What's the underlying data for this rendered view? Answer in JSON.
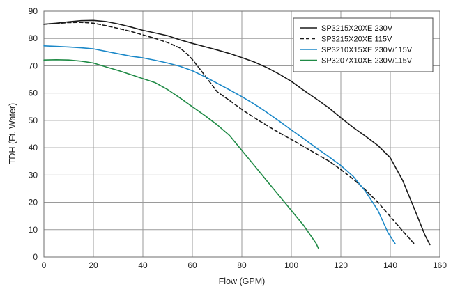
{
  "chart_data": {
    "type": "line",
    "xlabel": "Flow (GPM)",
    "ylabel": "TDH (Ft. Water)",
    "xlim": [
      0,
      160
    ],
    "ylim": [
      0,
      90
    ],
    "xticks": [
      0,
      20,
      40,
      60,
      80,
      100,
      120,
      140,
      160
    ],
    "yticks": [
      0,
      10,
      20,
      30,
      40,
      50,
      60,
      70,
      80,
      90
    ],
    "grid": true,
    "legend": "top-right",
    "series": [
      {
        "name": "SP3215X20XE 230V",
        "color": "#1a1a1a",
        "dash": "solid",
        "points": [
          [
            0,
            85.2
          ],
          [
            5,
            85.6
          ],
          [
            10,
            86.1
          ],
          [
            15,
            86.5
          ],
          [
            20,
            86.6
          ],
          [
            25,
            86.2
          ],
          [
            30,
            85.3
          ],
          [
            35,
            84.2
          ],
          [
            40,
            83.0
          ],
          [
            45,
            82.0
          ],
          [
            50,
            81.0
          ],
          [
            55,
            79.5
          ],
          [
            60,
            78.2
          ],
          [
            65,
            77.0
          ],
          [
            70,
            75.8
          ],
          [
            75,
            74.5
          ],
          [
            80,
            73.0
          ],
          [
            85,
            71.4
          ],
          [
            90,
            69.4
          ],
          [
            95,
            67.0
          ],
          [
            100,
            64.3
          ],
          [
            105,
            61.0
          ],
          [
            110,
            57.9
          ],
          [
            115,
            54.7
          ],
          [
            120,
            51.0
          ],
          [
            125,
            47.4
          ],
          [
            130,
            44.2
          ],
          [
            135,
            40.8
          ],
          [
            140,
            36.3
          ],
          [
            145,
            28.0
          ],
          [
            150,
            17.0
          ],
          [
            154,
            8.0
          ],
          [
            156,
            4.5
          ]
        ]
      },
      {
        "name": "SP3215X20XE 115V",
        "color": "#1a1a1a",
        "dash": "dashed",
        "points": [
          [
            0,
            85.2
          ],
          [
            5,
            85.5
          ],
          [
            10,
            85.8
          ],
          [
            15,
            85.9
          ],
          [
            20,
            85.6
          ],
          [
            25,
            84.7
          ],
          [
            30,
            83.7
          ],
          [
            35,
            82.6
          ],
          [
            40,
            81.3
          ],
          [
            45,
            80.0
          ],
          [
            50,
            78.5
          ],
          [
            55,
            76.5
          ],
          [
            58,
            74.2
          ],
          [
            60,
            72.3
          ],
          [
            65,
            66.5
          ],
          [
            70,
            60.5
          ],
          [
            75,
            57.3
          ],
          [
            80,
            54.0
          ],
          [
            85,
            51.0
          ],
          [
            90,
            48.2
          ],
          [
            95,
            45.5
          ],
          [
            100,
            43.0
          ],
          [
            105,
            40.4
          ],
          [
            110,
            37.8
          ],
          [
            115,
            35.2
          ],
          [
            120,
            32.0
          ],
          [
            125,
            28.5
          ],
          [
            130,
            24.5
          ],
          [
            135,
            20.0
          ],
          [
            140,
            14.8
          ],
          [
            145,
            9.5
          ],
          [
            150,
            4.5
          ]
        ]
      },
      {
        "name": "SP3210X15XE 230V/115V",
        "color": "#1b88c8",
        "dash": "solid",
        "points": [
          [
            0,
            77.3
          ],
          [
            5,
            77.1
          ],
          [
            10,
            76.9
          ],
          [
            15,
            76.6
          ],
          [
            20,
            76.2
          ],
          [
            25,
            75.3
          ],
          [
            30,
            74.4
          ],
          [
            35,
            73.5
          ],
          [
            40,
            72.9
          ],
          [
            45,
            72.0
          ],
          [
            50,
            71.0
          ],
          [
            55,
            69.8
          ],
          [
            60,
            68.2
          ],
          [
            65,
            66.0
          ],
          [
            70,
            63.6
          ],
          [
            75,
            61.2
          ],
          [
            80,
            58.7
          ],
          [
            85,
            56.0
          ],
          [
            90,
            53.0
          ],
          [
            95,
            49.8
          ],
          [
            100,
            46.5
          ],
          [
            105,
            43.3
          ],
          [
            110,
            40.0
          ],
          [
            115,
            36.8
          ],
          [
            120,
            33.5
          ],
          [
            125,
            29.5
          ],
          [
            130,
            24.0
          ],
          [
            135,
            17.0
          ],
          [
            139,
            9.0
          ],
          [
            142,
            4.8
          ]
        ]
      },
      {
        "name": "SP3207X10XE 230V/115V",
        "color": "#1f8a45",
        "dash": "solid",
        "points": [
          [
            0,
            72.1
          ],
          [
            5,
            72.2
          ],
          [
            10,
            72.1
          ],
          [
            15,
            71.7
          ],
          [
            20,
            71.0
          ],
          [
            25,
            69.6
          ],
          [
            30,
            68.3
          ],
          [
            35,
            66.8
          ],
          [
            40,
            65.3
          ],
          [
            45,
            63.8
          ],
          [
            50,
            61.3
          ],
          [
            55,
            58.2
          ],
          [
            60,
            55.0
          ],
          [
            65,
            51.8
          ],
          [
            70,
            48.4
          ],
          [
            75,
            44.5
          ],
          [
            80,
            39.0
          ],
          [
            85,
            33.5
          ],
          [
            90,
            28.0
          ],
          [
            95,
            22.5
          ],
          [
            100,
            17.0
          ],
          [
            105,
            11.5
          ],
          [
            110,
            5.0
          ],
          [
            111,
            3.0
          ]
        ]
      }
    ]
  }
}
